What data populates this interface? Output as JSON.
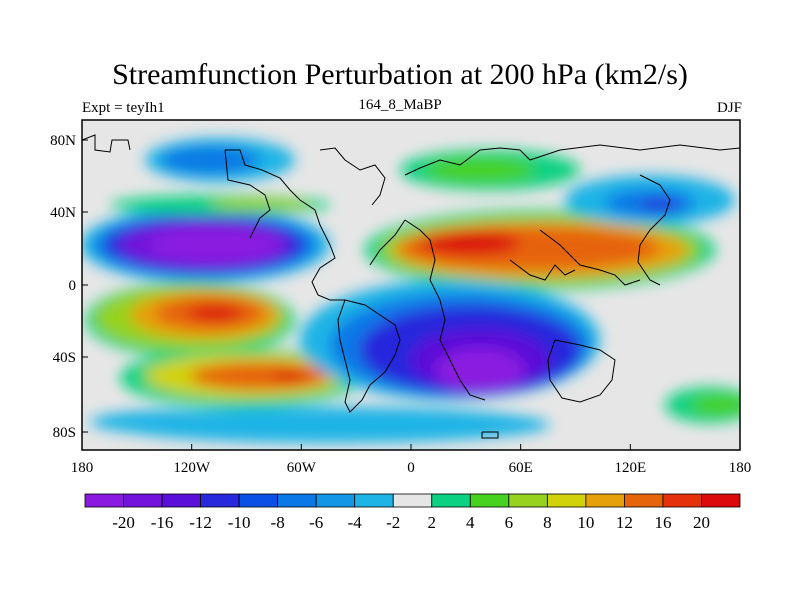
{
  "title": "Streamfunction Perturbation at 200 hPa (km2/s)",
  "left_label": "Expt = teyIh1",
  "center_label": "164_8_MaBP",
  "right_label": "DJF",
  "lat_ticks": [
    "80N",
    "40N",
    "0",
    "40S",
    "80S"
  ],
  "lon_ticks": [
    "180",
    "120W",
    "60W",
    "0",
    "60E",
    "120E",
    "180"
  ],
  "colorbar": {
    "labels": [
      "-20",
      "-16",
      "-12",
      "-10",
      "-8",
      "-6",
      "-4",
      "-2",
      "2",
      "4",
      "6",
      "8",
      "10",
      "12",
      "16",
      "20"
    ],
    "colors": [
      "#8a1ae0",
      "#7314dc",
      "#5a10d8",
      "#2828dc",
      "#0a50e6",
      "#0a78e6",
      "#1496e6",
      "#1eb4e6",
      "#e6e6e6",
      "#0ad282",
      "#46d21e",
      "#96d21e",
      "#d2d20a",
      "#e6a00a",
      "#e6640a",
      "#e6320a",
      "#dc0a0a"
    ]
  }
}
